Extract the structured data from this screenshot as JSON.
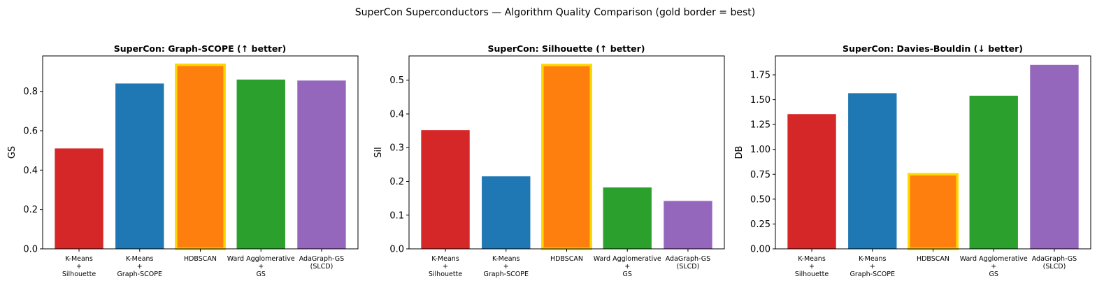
{
  "figure": {
    "suptitle": "SuperCon Superconductors — Algorithm Quality Comparison  (gold border = best)"
  },
  "colors": {
    "series": [
      "#d62728",
      "#1f77b4",
      "#ff7f0e",
      "#2ca02c",
      "#9467bd"
    ],
    "best_border": "#FFD700"
  },
  "chart_data": [
    {
      "type": "bar",
      "title": "SuperCon: Graph-SCOPE (↑ better)",
      "ylabel": "GS",
      "xlabel": "",
      "categories": [
        [
          "K-Means",
          "+",
          "Silhouette"
        ],
        [
          "K-Means",
          "+",
          "Graph-SCOPE"
        ],
        [
          "HDBSCAN"
        ],
        [
          "Ward Agglomerative",
          "+",
          "GS"
        ],
        [
          "AdaGraph-GS",
          "(SLCD)"
        ]
      ],
      "values": [
        0.51,
        0.84,
        0.935,
        0.86,
        0.855
      ],
      "best_index": 2,
      "ylim": [
        0,
        0.98
      ],
      "yticks": [
        0.0,
        0.2,
        0.4,
        0.6,
        0.8
      ],
      "ytick_labels": [
        "0.0",
        "0.2",
        "0.4",
        "0.6",
        "0.8"
      ],
      "grid": false
    },
    {
      "type": "bar",
      "title": "SuperCon: Silhouette (↑ better)",
      "ylabel": "Sil",
      "xlabel": "",
      "categories": [
        [
          "K-Means",
          "+",
          "Silhouette"
        ],
        [
          "K-Means",
          "+",
          "Graph-SCOPE"
        ],
        [
          "HDBSCAN"
        ],
        [
          "Ward Agglomerative",
          "+",
          "GS"
        ],
        [
          "AdaGraph-GS",
          "(SLCD)"
        ]
      ],
      "values": [
        0.352,
        0.215,
        0.545,
        0.182,
        0.142
      ],
      "best_index": 2,
      "ylim": [
        0,
        0.572
      ],
      "yticks": [
        0.0,
        0.1,
        0.2,
        0.3,
        0.4,
        0.5
      ],
      "ytick_labels": [
        "0.0",
        "0.1",
        "0.2",
        "0.3",
        "0.4",
        "0.5"
      ],
      "grid": false
    },
    {
      "type": "bar",
      "title": "SuperCon: Davies-Bouldin (↓ better)",
      "ylabel": "DB",
      "xlabel": "",
      "categories": [
        [
          "K-Means",
          "+",
          "Silhouette"
        ],
        [
          "K-Means",
          "+",
          "Graph-SCOPE"
        ],
        [
          "HDBSCAN"
        ],
        [
          "Ward Agglomerative",
          "+",
          "GS"
        ],
        [
          "AdaGraph-GS",
          "(SLCD)"
        ]
      ],
      "values": [
        1.355,
        1.565,
        0.75,
        1.54,
        1.85
      ],
      "best_index": 2,
      "ylim": [
        0,
        1.94
      ],
      "yticks": [
        0.0,
        0.25,
        0.5,
        0.75,
        1.0,
        1.25,
        1.5,
        1.75
      ],
      "ytick_labels": [
        "0.00",
        "0.25",
        "0.50",
        "0.75",
        "1.00",
        "1.25",
        "1.50",
        "1.75"
      ],
      "grid": false
    }
  ]
}
